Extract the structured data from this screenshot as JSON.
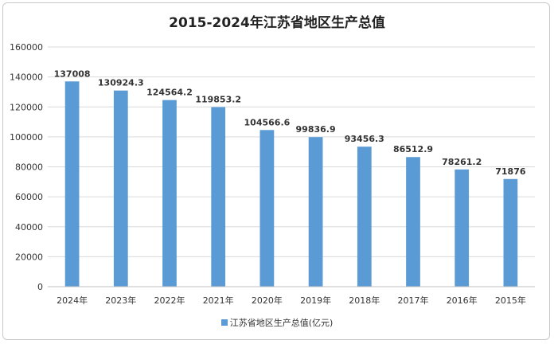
{
  "chart_data": {
    "type": "bar",
    "title": "2015-2024年江苏省地区生产总值",
    "categories": [
      "2024年",
      "2023年",
      "2022年",
      "2021年",
      "2020年",
      "2019年",
      "2018年",
      "2017年",
      "2016年",
      "2015年"
    ],
    "series": [
      {
        "name": "江苏省地区生产总值(亿元)",
        "values": [
          137008,
          130924.3,
          124564.2,
          119853.2,
          104566.6,
          99836.9,
          93456.3,
          86512.9,
          78261.2,
          71876
        ],
        "labels": [
          "137008",
          "130924.3",
          "124564.2",
          "119853.2",
          "104566.6",
          "99836.9",
          "93456.3",
          "86512.9",
          "78261.2",
          "71876"
        ]
      }
    ],
    "y_ticks": [
      "0",
      "20000",
      "40000",
      "60000",
      "80000",
      "100000",
      "120000",
      "140000",
      "160000"
    ],
    "ylim": [
      0,
      160000
    ],
    "grid": true,
    "legend_position": "bottom",
    "bar_color": "#5b9bd5",
    "grid_color": "#d9d9d9"
  }
}
